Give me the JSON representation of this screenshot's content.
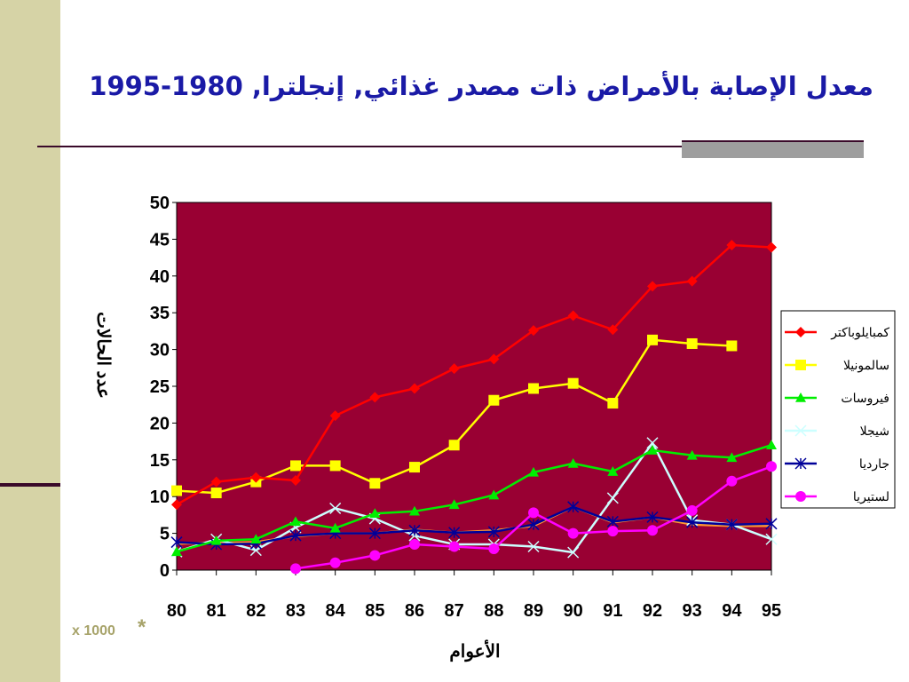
{
  "slide": {
    "title": "معدل الإصابة بالأمراض ذات مصدر غذائي, إنجلترا, 1980-1995",
    "footnote_multiplier": "x 1000",
    "footnote_star": "*"
  },
  "colors": {
    "plot_bg": "#990033",
    "title": "#1a1aa6",
    "side_bar": "#d6d3a6",
    "footnote": "#a7a36a"
  },
  "chart_data": {
    "type": "line",
    "title": "",
    "xlabel": "الأعوام",
    "ylabel": "عدد الحالات",
    "categories": [
      "80",
      "81",
      "82",
      "83",
      "84",
      "85",
      "86",
      "87",
      "88",
      "89",
      "90",
      "91",
      "92",
      "93",
      "94",
      "95"
    ],
    "ylim": [
      0,
      50
    ],
    "yticks": [
      "0",
      "5",
      "10",
      "15",
      "20",
      "25",
      "30",
      "35",
      "40",
      "45",
      "50"
    ],
    "grid": false,
    "legend_position": "right",
    "series": [
      {
        "name": "كمبايلوباكتر",
        "color": "#ff0000",
        "marker": "diamond",
        "values": [
          8.9,
          12.0,
          12.6,
          12.2,
          21.0,
          23.5,
          24.7,
          27.4,
          28.7,
          32.6,
          34.6,
          32.7,
          38.6,
          39.3,
          44.2,
          43.9
        ]
      },
      {
        "name": "سالمونيلا",
        "color": "#ffff00",
        "marker": "square",
        "values": [
          10.8,
          10.5,
          12.0,
          14.2,
          14.2,
          11.8,
          14.0,
          17.0,
          23.1,
          24.7,
          25.4,
          22.7,
          31.3,
          30.8,
          30.5,
          null
        ]
      },
      {
        "name": "فيروسات",
        "color": "#00ee00",
        "marker": "triangle",
        "values": [
          2.5,
          4.0,
          4.2,
          6.6,
          5.7,
          7.7,
          8.0,
          8.9,
          10.2,
          13.3,
          14.5,
          13.4,
          16.3,
          15.6,
          15.3,
          17.0
        ]
      },
      {
        "name": "شيجلا",
        "color": "#ccffff",
        "marker": "x",
        "values": [
          2.5,
          4.2,
          2.7,
          5.8,
          8.4,
          7.0,
          4.7,
          3.5,
          3.5,
          3.2,
          2.4,
          9.8,
          17.3,
          6.8,
          6.2,
          4.2
        ]
      },
      {
        "name": "جارديا",
        "color": "#000099",
        "marker": "star",
        "values": [
          3.8,
          3.5,
          3.6,
          4.7,
          5.0,
          5.0,
          5.4,
          5.1,
          5.2,
          6.2,
          8.6,
          6.6,
          7.2,
          6.5,
          6.2,
          6.3
        ]
      },
      {
        "name": "لستيريا",
        "color": "#ff00ff",
        "marker": "circle",
        "values": [
          null,
          null,
          null,
          0.2,
          1.0,
          2.0,
          3.5,
          3.2,
          2.9,
          7.8,
          5.0,
          5.3,
          5.4,
          8.1,
          12.1,
          14.1
        ]
      },
      {
        "name": "",
        "color": "#ff9933",
        "marker": "none",
        "values": [
          3.6,
          3.7,
          3.8,
          4.6,
          5.0,
          5.0,
          5.5,
          5.1,
          5.4,
          6.0,
          8.6,
          6.5,
          7.2,
          6.2,
          6.0,
          6.0
        ]
      }
    ]
  }
}
